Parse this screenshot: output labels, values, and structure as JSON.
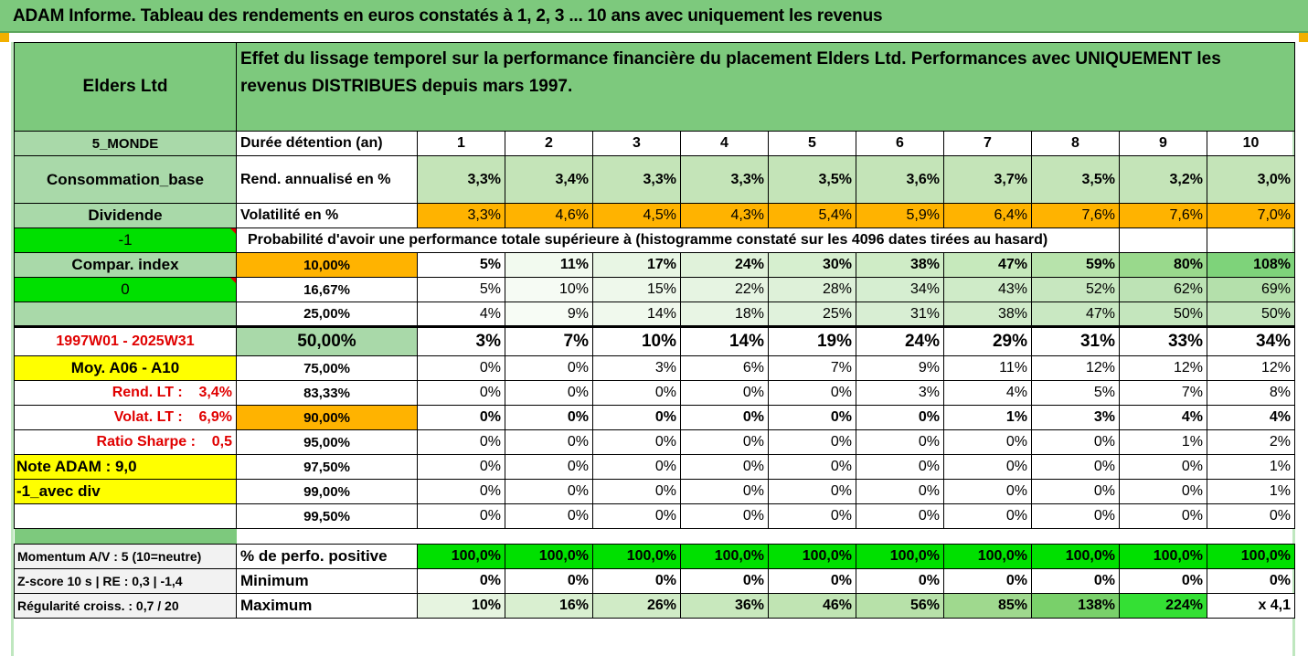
{
  "title": "ADAM Informe. Tableau des rendements en euros constatés à 1, 2, 3 ... 10 ans avec uniquement les revenus",
  "header": {
    "name": "Elders Ltd",
    "description": "Effet du lissage temporel sur la performance financière du placement Elders Ltd. Performances avec UNIQUEMENT les revenus DISTRIBUES depuis mars 1997."
  },
  "years_row": {
    "left": "5_MONDE",
    "label": "Durée détention (an)",
    "values": [
      "1",
      "2",
      "3",
      "4",
      "5",
      "6",
      "7",
      "8",
      "9",
      "10"
    ]
  },
  "rend_row": {
    "left": "Consommation_base",
    "label": "Rend. annualisé en %",
    "values": [
      "3,3%",
      "3,4%",
      "3,3%",
      "3,3%",
      "3,5%",
      "3,6%",
      "3,7%",
      "3,5%",
      "3,2%",
      "3,0%"
    ]
  },
  "vol_row": {
    "left": "Dividende",
    "label": "Volatilité en %",
    "values": [
      "3,3%",
      "4,6%",
      "4,5%",
      "4,3%",
      "5,4%",
      "5,9%",
      "6,4%",
      "7,6%",
      "7,6%",
      "7,0%"
    ]
  },
  "prob_header": {
    "left": "-1",
    "label": "Probabilité d'avoir une performance totale supérieure à (histogramme constaté sur les 4096 dates tirées au hasard)"
  },
  "prob_rows": [
    {
      "left": "Compar. index",
      "threshold": "10,00%",
      "values": [
        "5%",
        "11%",
        "17%",
        "24%",
        "30%",
        "38%",
        "47%",
        "59%",
        "80%",
        "108%"
      ]
    },
    {
      "left": "0",
      "threshold": "16,67%",
      "values": [
        "5%",
        "10%",
        "15%",
        "22%",
        "28%",
        "34%",
        "43%",
        "52%",
        "62%",
        "69%"
      ]
    },
    {
      "left": "",
      "threshold": "25,00%",
      "values": [
        "4%",
        "9%",
        "14%",
        "18%",
        "25%",
        "31%",
        "38%",
        "47%",
        "50%",
        "50%"
      ]
    },
    {
      "left": "1997W01 - 2025W31",
      "threshold": "50,00%",
      "values": [
        "3%",
        "7%",
        "10%",
        "14%",
        "19%",
        "24%",
        "29%",
        "31%",
        "33%",
        "34%"
      ]
    },
    {
      "left": "Moy. A06 - A10",
      "threshold": "75,00%",
      "values": [
        "0%",
        "0%",
        "3%",
        "6%",
        "7%",
        "9%",
        "11%",
        "12%",
        "12%",
        "12%"
      ]
    },
    {
      "left": "Rend. LT :    3,4%",
      "threshold": "83,33%",
      "values": [
        "0%",
        "0%",
        "0%",
        "0%",
        "0%",
        "3%",
        "4%",
        "5%",
        "7%",
        "8%"
      ]
    },
    {
      "left": "Volat. LT :    6,9%",
      "threshold": "90,00%",
      "values": [
        "0%",
        "0%",
        "0%",
        "0%",
        "0%",
        "0%",
        "1%",
        "3%",
        "4%",
        "4%"
      ]
    },
    {
      "left": "Ratio Sharpe :    0,5",
      "threshold": "95,00%",
      "values": [
        "0%",
        "0%",
        "0%",
        "0%",
        "0%",
        "0%",
        "0%",
        "0%",
        "1%",
        "2%"
      ]
    },
    {
      "left": "Note ADAM : 9,0",
      "threshold": "97,50%",
      "values": [
        "0%",
        "0%",
        "0%",
        "0%",
        "0%",
        "0%",
        "0%",
        "0%",
        "0%",
        "1%"
      ]
    },
    {
      "left": "-1_avec div",
      "threshold": "99,00%",
      "values": [
        "0%",
        "0%",
        "0%",
        "0%",
        "0%",
        "0%",
        "0%",
        "0%",
        "0%",
        "1%"
      ]
    },
    {
      "left": "",
      "threshold": "99,50%",
      "values": [
        "0%",
        "0%",
        "0%",
        "0%",
        "0%",
        "0%",
        "0%",
        "0%",
        "0%",
        "0%"
      ]
    }
  ],
  "bottom_rows": [
    {
      "left": "Momentum A/V : 5 (10=neutre)",
      "label": "% de perfo. positive",
      "values": [
        "100,0%",
        "100,0%",
        "100,0%",
        "100,0%",
        "100,0%",
        "100,0%",
        "100,0%",
        "100,0%",
        "100,0%",
        "100,0%"
      ]
    },
    {
      "left": "Z-score 10 s  |  RE : 0,3  |  -1,4",
      "label": "Minimum",
      "values": [
        "0%",
        "0%",
        "0%",
        "0%",
        "0%",
        "0%",
        "0%",
        "0%",
        "0%",
        "0%"
      ]
    },
    {
      "left": "Régularité croiss. : 0,7 / 20",
      "label": "Maximum",
      "values": [
        "10%",
        "16%",
        "26%",
        "36%",
        "46%",
        "56%",
        "85%",
        "138%",
        "224%",
        "x 4,1"
      ]
    }
  ],
  "colors": {
    "header_green": "#7dc97d",
    "mid_green": "#a9d9a9",
    "light_green": "#c4e4b8",
    "orange": "#ffb300",
    "bright_green": "#00e000",
    "yellow": "#ffff00",
    "red_text": "#e00000"
  }
}
